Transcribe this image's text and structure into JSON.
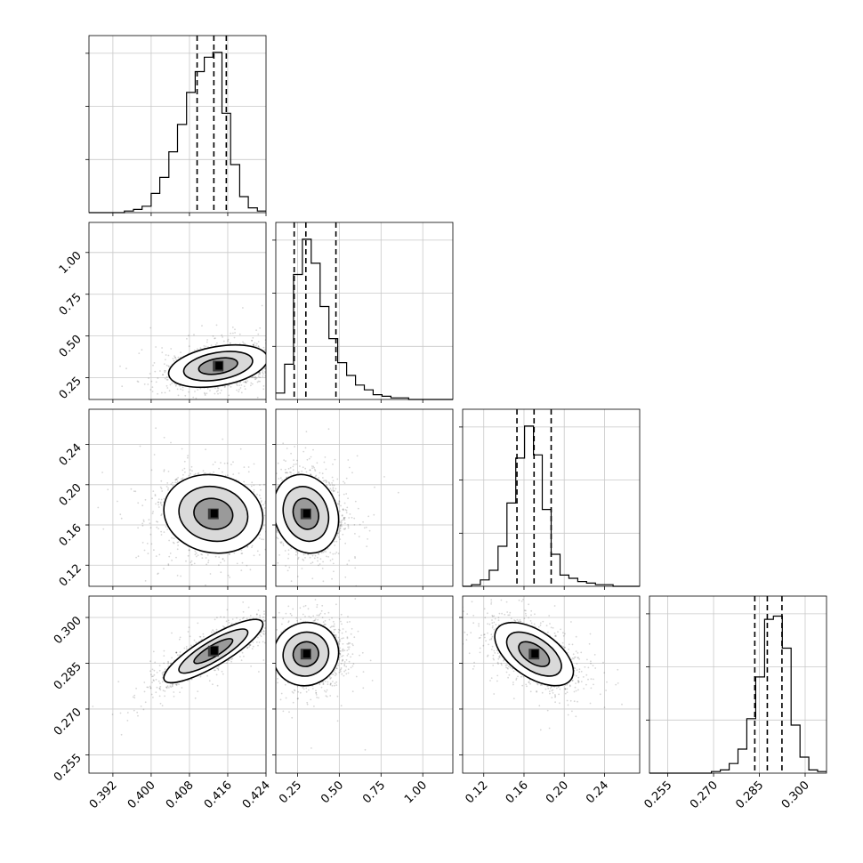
{
  "chart_data": {
    "type": "corner",
    "title": "",
    "parameters": [
      {
        "index": 0,
        "range": [
          0.387,
          0.424
        ],
        "ticks": [
          0.392,
          0.4,
          0.408,
          0.416,
          0.424
        ],
        "tick_labels": [
          "0.392",
          "0.400",
          "0.408",
          "0.416",
          "0.424"
        ]
      },
      {
        "index": 1,
        "range": [
          0.12,
          1.18
        ],
        "ticks": [
          0.25,
          0.5,
          0.75,
          1.0
        ],
        "tick_labels": [
          "0.25",
          "0.50",
          "0.75",
          "1.00"
        ]
      },
      {
        "index": 2,
        "range": [
          0.099,
          0.275
        ],
        "ticks": [
          0.12,
          0.16,
          0.2,
          0.24
        ],
        "tick_labels": [
          "0.12",
          "0.16",
          "0.20",
          "0.24"
        ]
      },
      {
        "index": 3,
        "range": [
          0.249,
          0.307
        ],
        "ticks": [
          0.255,
          0.27,
          0.285,
          0.3
        ],
        "tick_labels": [
          "0.255",
          "0.270",
          "0.285",
          "0.300"
        ]
      }
    ],
    "histograms": [
      {
        "param": 0,
        "bin_edges": [
          0.387,
          0.3889,
          0.3907,
          0.3926,
          0.3944,
          0.3963,
          0.3981,
          0.4,
          0.4018,
          0.4037,
          0.4055,
          0.4074,
          0.4092,
          0.4111,
          0.4129,
          0.4148,
          0.4166,
          0.4185,
          0.4203,
          0.4222,
          0.424
        ],
        "counts": [
          0,
          0,
          0,
          0,
          0.01,
          0.02,
          0.04,
          0.12,
          0.22,
          0.38,
          0.55,
          0.75,
          0.88,
          0.97,
          1.0,
          0.62,
          0.3,
          0.1,
          0.03,
          0.01
        ],
        "quantiles": [
          0.4096,
          0.4131,
          0.4157
        ]
      },
      {
        "param": 1,
        "bin_edges": [
          0.12,
          0.173,
          0.226,
          0.279,
          0.332,
          0.385,
          0.438,
          0.491,
          0.544,
          0.597,
          0.65,
          0.703,
          0.756,
          0.809,
          0.862,
          0.915,
          0.968,
          1.021,
          1.074,
          1.127,
          1.18
        ],
        "counts": [
          0.04,
          0.22,
          0.78,
          1.0,
          0.85,
          0.58,
          0.38,
          0.23,
          0.15,
          0.09,
          0.06,
          0.03,
          0.02,
          0.01,
          0.01,
          0,
          0,
          0,
          0,
          0
        ],
        "quantiles": [
          0.23,
          0.3,
          0.48
        ]
      },
      {
        "param": 2,
        "bin_edges": [
          0.099,
          0.1078,
          0.1166,
          0.1254,
          0.1342,
          0.143,
          0.1518,
          0.1606,
          0.1694,
          0.1782,
          0.187,
          0.1958,
          0.2046,
          0.2134,
          0.2222,
          0.231,
          0.2398,
          0.2486,
          0.2574,
          0.2662,
          0.275
        ],
        "counts": [
          0,
          0.01,
          0.04,
          0.1,
          0.25,
          0.52,
          0.8,
          1.0,
          0.82,
          0.48,
          0.2,
          0.07,
          0.05,
          0.03,
          0.02,
          0.01,
          0.01,
          0,
          0,
          0
        ],
        "quantiles": [
          0.153,
          0.17,
          0.187
        ]
      },
      {
        "param": 3,
        "bin_edges": [
          0.249,
          0.2519,
          0.2548,
          0.2577,
          0.2606,
          0.2635,
          0.2664,
          0.2693,
          0.2722,
          0.2751,
          0.278,
          0.2809,
          0.2838,
          0.2867,
          0.2896,
          0.2925,
          0.2954,
          0.2983,
          0.3012,
          0.3041,
          0.307
        ],
        "counts": [
          0,
          0,
          0,
          0,
          0,
          0,
          0,
          0.01,
          0.02,
          0.06,
          0.15,
          0.34,
          0.6,
          0.96,
          0.98,
          0.78,
          0.3,
          0.1,
          0.02,
          0.01
        ],
        "quantiles": [
          0.2835,
          0.2876,
          0.2924
        ]
      }
    ],
    "scatter_panels": [
      {
        "row": 1,
        "col": 0,
        "center": [
          0.414,
          0.32
        ],
        "spread": [
          0.0045,
          0.055
        ],
        "correlation": 0.35,
        "skew": 0.18
      },
      {
        "row": 2,
        "col": 0,
        "center": [
          0.413,
          0.171
        ],
        "spread": [
          0.0045,
          0.017
        ],
        "correlation": -0.1,
        "skew": 0
      },
      {
        "row": 2,
        "col": 1,
        "center": [
          0.3,
          0.171
        ],
        "spread": [
          0.085,
          0.017
        ],
        "correlation": -0.15,
        "skew": 0.15
      },
      {
        "row": 3,
        "col": 0,
        "center": [
          0.413,
          0.289
        ],
        "spread": [
          0.0045,
          0.0045
        ],
        "correlation": 0.85,
        "skew": 0
      },
      {
        "row": 3,
        "col": 1,
        "center": [
          0.3,
          0.288
        ],
        "spread": [
          0.085,
          0.0045
        ],
        "correlation": 0.05,
        "skew": 0.15
      },
      {
        "row": 3,
        "col": 2,
        "center": [
          0.17,
          0.288
        ],
        "spread": [
          0.017,
          0.0045
        ],
        "correlation": -0.55,
        "skew": 0
      }
    ],
    "contour_levels": [
      "1-sigma",
      "2-sigma",
      "3-sigma"
    ],
    "quantile_line_style": "dashed",
    "grid": true,
    "colors": {
      "points": "#000000",
      "contours": "#000000",
      "hist": "#000000",
      "fill_dark": "#000000",
      "fill_light": "#ffffff",
      "grid": "#c8c8c8"
    }
  }
}
